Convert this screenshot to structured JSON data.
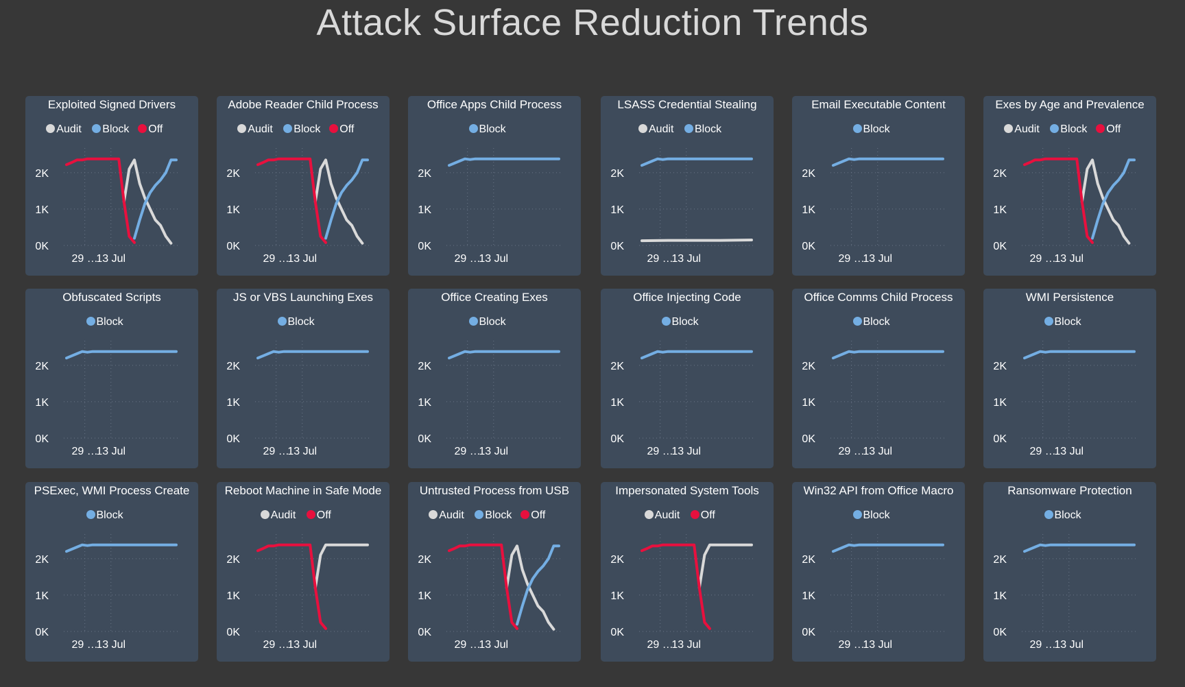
{
  "page": {
    "title": "Attack Surface Reduction Trends"
  },
  "colors": {
    "audit": "#d9d9d9",
    "block": "#74aee3",
    "off": "#e8103e",
    "card": "#3e4b5b",
    "background": "#373737"
  },
  "chart_data": [
    {
      "type": "line",
      "title": "Exploited Signed Drivers",
      "legend": [
        "Audit",
        "Block",
        "Off"
      ],
      "yticks": [
        "0K",
        "1K",
        "2K"
      ],
      "xticks": [
        "29 …",
        "13 Jul"
      ],
      "ylim": [
        0,
        2600
      ],
      "series": [
        {
          "name": "Audit",
          "x": [
            11,
            12,
            13,
            14,
            15,
            16,
            17,
            18,
            19,
            20
          ],
          "values": [
            1200,
            2100,
            2350,
            1700,
            1300,
            1000,
            700,
            550,
            250,
            60
          ]
        },
        {
          "name": "Block",
          "x": [
            13,
            14,
            15,
            16,
            17,
            18,
            19,
            20,
            21
          ],
          "values": [
            200,
            700,
            1150,
            1450,
            1650,
            1800,
            2000,
            2350,
            2350
          ]
        },
        {
          "name": "Off",
          "x": [
            0,
            1,
            2,
            3,
            4,
            5,
            6,
            7,
            8,
            9,
            10,
            11,
            12,
            13
          ],
          "values": [
            2220,
            2280,
            2350,
            2350,
            2380,
            2380,
            2380,
            2380,
            2380,
            2380,
            2380,
            1200,
            250,
            80
          ]
        }
      ]
    },
    {
      "type": "line",
      "title": "Adobe Reader Child Process",
      "legend": [
        "Audit",
        "Block",
        "Off"
      ],
      "yticks": [
        "0K",
        "1K",
        "2K"
      ],
      "xticks": [
        "29 …",
        "13 Jul"
      ],
      "ylim": [
        0,
        2600
      ],
      "series": [
        {
          "name": "Audit",
          "x": [
            11,
            12,
            13,
            14,
            15,
            16,
            17,
            18,
            19,
            20
          ],
          "values": [
            1200,
            2100,
            2350,
            1700,
            1300,
            1000,
            700,
            550,
            250,
            60
          ]
        },
        {
          "name": "Block",
          "x": [
            13,
            14,
            15,
            16,
            17,
            18,
            19,
            20,
            21
          ],
          "values": [
            200,
            700,
            1150,
            1450,
            1650,
            1800,
            2000,
            2350,
            2350
          ]
        },
        {
          "name": "Off",
          "x": [
            0,
            1,
            2,
            3,
            4,
            5,
            6,
            7,
            8,
            9,
            10,
            11,
            12,
            13
          ],
          "values": [
            2220,
            2280,
            2350,
            2350,
            2380,
            2380,
            2380,
            2380,
            2380,
            2380,
            2380,
            1200,
            250,
            80
          ]
        }
      ]
    },
    {
      "type": "line",
      "title": "Office Apps Child Process",
      "legend": [
        "Block"
      ],
      "yticks": [
        "0K",
        "1K",
        "2K"
      ],
      "xticks": [
        "29 …",
        "13 Jul"
      ],
      "ylim": [
        0,
        2600
      ],
      "series": [
        {
          "name": "Block",
          "x": [
            0,
            2,
            3,
            4,
            5,
            8,
            12,
            16,
            21
          ],
          "values": [
            2200,
            2320,
            2380,
            2360,
            2380,
            2380,
            2380,
            2380,
            2380
          ]
        }
      ]
    },
    {
      "type": "line",
      "title": "LSASS Credential Stealing",
      "legend": [
        "Audit",
        "Block"
      ],
      "yticks": [
        "0K",
        "1K",
        "2K"
      ],
      "xticks": [
        "29 …",
        "13 Jul"
      ],
      "ylim": [
        0,
        2600
      ],
      "series": [
        {
          "name": "Audit",
          "x": [
            0,
            5,
            10,
            15,
            21
          ],
          "values": [
            130,
            140,
            140,
            140,
            150
          ]
        },
        {
          "name": "Block",
          "x": [
            0,
            2,
            3,
            4,
            5,
            8,
            12,
            16,
            21
          ],
          "values": [
            2200,
            2320,
            2380,
            2360,
            2380,
            2380,
            2380,
            2380,
            2380
          ]
        }
      ]
    },
    {
      "type": "line",
      "title": "Email Executable Content",
      "legend": [
        "Block"
      ],
      "yticks": [
        "0K",
        "1K",
        "2K"
      ],
      "xticks": [
        "29 …",
        "13 Jul"
      ],
      "ylim": [
        0,
        2600
      ],
      "series": [
        {
          "name": "Block",
          "x": [
            0,
            2,
            3,
            4,
            5,
            8,
            12,
            16,
            21
          ],
          "values": [
            2200,
            2320,
            2380,
            2360,
            2380,
            2380,
            2380,
            2380,
            2380
          ]
        }
      ]
    },
    {
      "type": "line",
      "title": "Exes by Age and Prevalence",
      "legend": [
        "Audit",
        "Block",
        "Off"
      ],
      "yticks": [
        "0K",
        "1K",
        "2K"
      ],
      "xticks": [
        "29 …",
        "13 Jul"
      ],
      "ylim": [
        0,
        2600
      ],
      "series": [
        {
          "name": "Audit",
          "x": [
            11,
            12,
            13,
            14,
            15,
            16,
            17,
            18,
            19,
            20
          ],
          "values": [
            1200,
            2100,
            2350,
            1700,
            1300,
            1000,
            700,
            550,
            250,
            60
          ]
        },
        {
          "name": "Block",
          "x": [
            13,
            14,
            15,
            16,
            17,
            18,
            19,
            20,
            21
          ],
          "values": [
            200,
            700,
            1150,
            1450,
            1650,
            1800,
            2000,
            2350,
            2350
          ]
        },
        {
          "name": "Off",
          "x": [
            0,
            1,
            2,
            3,
            4,
            5,
            6,
            7,
            8,
            9,
            10,
            11,
            12,
            13
          ],
          "values": [
            2220,
            2280,
            2350,
            2350,
            2380,
            2380,
            2380,
            2380,
            2380,
            2380,
            2380,
            1200,
            250,
            80
          ]
        }
      ]
    },
    {
      "type": "line",
      "title": "Obfuscated Scripts",
      "legend": [
        "Block"
      ],
      "yticks": [
        "0K",
        "1K",
        "2K"
      ],
      "xticks": [
        "29 …",
        "13 Jul"
      ],
      "ylim": [
        0,
        2600
      ],
      "series": [
        {
          "name": "Block",
          "x": [
            0,
            2,
            3,
            4,
            5,
            8,
            12,
            16,
            21
          ],
          "values": [
            2200,
            2320,
            2380,
            2360,
            2380,
            2380,
            2380,
            2380,
            2380
          ]
        }
      ]
    },
    {
      "type": "line",
      "title": "JS or VBS Launching Exes",
      "legend": [
        "Block"
      ],
      "yticks": [
        "0K",
        "1K",
        "2K"
      ],
      "xticks": [
        "29 …",
        "13 Jul"
      ],
      "ylim": [
        0,
        2600
      ],
      "series": [
        {
          "name": "Block",
          "x": [
            0,
            2,
            3,
            4,
            5,
            8,
            12,
            16,
            21
          ],
          "values": [
            2200,
            2320,
            2380,
            2360,
            2380,
            2380,
            2380,
            2380,
            2380
          ]
        }
      ]
    },
    {
      "type": "line",
      "title": "Office Creating Exes",
      "legend": [
        "Block"
      ],
      "yticks": [
        "0K",
        "1K",
        "2K"
      ],
      "xticks": [
        "29 …",
        "13 Jul"
      ],
      "ylim": [
        0,
        2600
      ],
      "series": [
        {
          "name": "Block",
          "x": [
            0,
            2,
            3,
            4,
            5,
            8,
            12,
            16,
            21
          ],
          "values": [
            2200,
            2320,
            2380,
            2360,
            2380,
            2380,
            2380,
            2380,
            2380
          ]
        }
      ]
    },
    {
      "type": "line",
      "title": "Office Injecting Code",
      "legend": [
        "Block"
      ],
      "yticks": [
        "0K",
        "1K",
        "2K"
      ],
      "xticks": [
        "29 …",
        "13 Jul"
      ],
      "ylim": [
        0,
        2600
      ],
      "series": [
        {
          "name": "Block",
          "x": [
            0,
            2,
            3,
            4,
            5,
            8,
            12,
            16,
            21
          ],
          "values": [
            2200,
            2320,
            2380,
            2360,
            2380,
            2380,
            2380,
            2380,
            2380
          ]
        }
      ]
    },
    {
      "type": "line",
      "title": "Office Comms Child Process",
      "legend": [
        "Block"
      ],
      "yticks": [
        "0K",
        "1K",
        "2K"
      ],
      "xticks": [
        "29 …",
        "13 Jul"
      ],
      "ylim": [
        0,
        2600
      ],
      "series": [
        {
          "name": "Block",
          "x": [
            0,
            2,
            3,
            4,
            5,
            8,
            12,
            16,
            21
          ],
          "values": [
            2200,
            2320,
            2380,
            2360,
            2380,
            2380,
            2380,
            2380,
            2380
          ]
        }
      ]
    },
    {
      "type": "line",
      "title": "WMI Persistence",
      "legend": [
        "Block"
      ],
      "yticks": [
        "0K",
        "1K",
        "2K"
      ],
      "xticks": [
        "29 …",
        "13 Jul"
      ],
      "ylim": [
        0,
        2600
      ],
      "series": [
        {
          "name": "Block",
          "x": [
            0,
            2,
            3,
            4,
            5,
            8,
            12,
            16,
            21
          ],
          "values": [
            2200,
            2320,
            2380,
            2360,
            2380,
            2380,
            2380,
            2380,
            2380
          ]
        }
      ]
    },
    {
      "type": "line",
      "title": "PSExec, WMI Process Create",
      "legend": [
        "Block"
      ],
      "yticks": [
        "0K",
        "1K",
        "2K"
      ],
      "xticks": [
        "29 …",
        "13 Jul"
      ],
      "ylim": [
        0,
        2600
      ],
      "series": [
        {
          "name": "Block",
          "x": [
            0,
            2,
            3,
            4,
            5,
            8,
            12,
            16,
            21
          ],
          "values": [
            2200,
            2320,
            2380,
            2360,
            2380,
            2380,
            2380,
            2380,
            2380
          ]
        }
      ]
    },
    {
      "type": "line",
      "title": "Reboot Machine in Safe Mode",
      "legend": [
        "Audit",
        "Off"
      ],
      "yticks": [
        "0K",
        "1K",
        "2K"
      ],
      "xticks": [
        "29 …",
        "13 Jul"
      ],
      "ylim": [
        0,
        2600
      ],
      "series": [
        {
          "name": "Audit",
          "x": [
            11,
            12,
            13,
            14,
            16,
            18,
            21
          ],
          "values": [
            1200,
            2100,
            2380,
            2380,
            2380,
            2380,
            2380
          ]
        },
        {
          "name": "Off",
          "x": [
            0,
            1,
            2,
            3,
            4,
            5,
            6,
            7,
            8,
            9,
            10,
            11,
            12,
            13
          ],
          "values": [
            2220,
            2280,
            2350,
            2350,
            2380,
            2380,
            2380,
            2380,
            2380,
            2380,
            2380,
            1200,
            250,
            80
          ]
        }
      ]
    },
    {
      "type": "line",
      "title": "Untrusted Process from USB",
      "legend": [
        "Audit",
        "Block",
        "Off"
      ],
      "yticks": [
        "0K",
        "1K",
        "2K"
      ],
      "xticks": [
        "29 …",
        "13 Jul"
      ],
      "ylim": [
        0,
        2600
      ],
      "series": [
        {
          "name": "Audit",
          "x": [
            11,
            12,
            13,
            14,
            15,
            16,
            17,
            18,
            19,
            20
          ],
          "values": [
            1200,
            2100,
            2350,
            1700,
            1300,
            1000,
            700,
            550,
            250,
            60
          ]
        },
        {
          "name": "Block",
          "x": [
            13,
            14,
            15,
            16,
            17,
            18,
            19,
            20,
            21
          ],
          "values": [
            200,
            700,
            1150,
            1450,
            1650,
            1800,
            2000,
            2350,
            2350
          ]
        },
        {
          "name": "Off",
          "x": [
            0,
            1,
            2,
            3,
            4,
            5,
            6,
            7,
            8,
            9,
            10,
            11,
            12,
            13
          ],
          "values": [
            2220,
            2280,
            2350,
            2350,
            2380,
            2380,
            2380,
            2380,
            2380,
            2380,
            2380,
            1200,
            250,
            80
          ]
        }
      ]
    },
    {
      "type": "line",
      "title": "Impersonated System Tools",
      "legend": [
        "Audit",
        "Off"
      ],
      "yticks": [
        "0K",
        "1K",
        "2K"
      ],
      "xticks": [
        "29 …",
        "13 Jul"
      ],
      "ylim": [
        0,
        2600
      ],
      "series": [
        {
          "name": "Audit",
          "x": [
            11,
            12,
            13,
            14,
            16,
            18,
            21
          ],
          "values": [
            1200,
            2100,
            2380,
            2380,
            2380,
            2380,
            2380
          ]
        },
        {
          "name": "Off",
          "x": [
            0,
            1,
            2,
            3,
            4,
            5,
            6,
            7,
            8,
            9,
            10,
            11,
            12,
            13
          ],
          "values": [
            2220,
            2280,
            2350,
            2350,
            2380,
            2380,
            2380,
            2380,
            2380,
            2380,
            2380,
            1200,
            250,
            80
          ]
        }
      ]
    },
    {
      "type": "line",
      "title": "Win32 API from Office Macro",
      "legend": [
        "Block"
      ],
      "yticks": [
        "0K",
        "1K",
        "2K"
      ],
      "xticks": [
        "29 …",
        "13 Jul"
      ],
      "ylim": [
        0,
        2600
      ],
      "series": [
        {
          "name": "Block",
          "x": [
            0,
            2,
            3,
            4,
            5,
            8,
            12,
            16,
            21
          ],
          "values": [
            2200,
            2320,
            2380,
            2360,
            2380,
            2380,
            2380,
            2380,
            2380
          ]
        }
      ]
    },
    {
      "type": "line",
      "title": "Ransomware Protection",
      "legend": [
        "Block"
      ],
      "yticks": [
        "0K",
        "1K",
        "2K"
      ],
      "xticks": [
        "29 …",
        "13 Jul"
      ],
      "ylim": [
        0,
        2600
      ],
      "series": [
        {
          "name": "Block",
          "x": [
            0,
            2,
            3,
            4,
            5,
            8,
            12,
            16,
            21
          ],
          "values": [
            2200,
            2320,
            2380,
            2360,
            2380,
            2380,
            2380,
            2380,
            2380
          ]
        }
      ]
    }
  ]
}
